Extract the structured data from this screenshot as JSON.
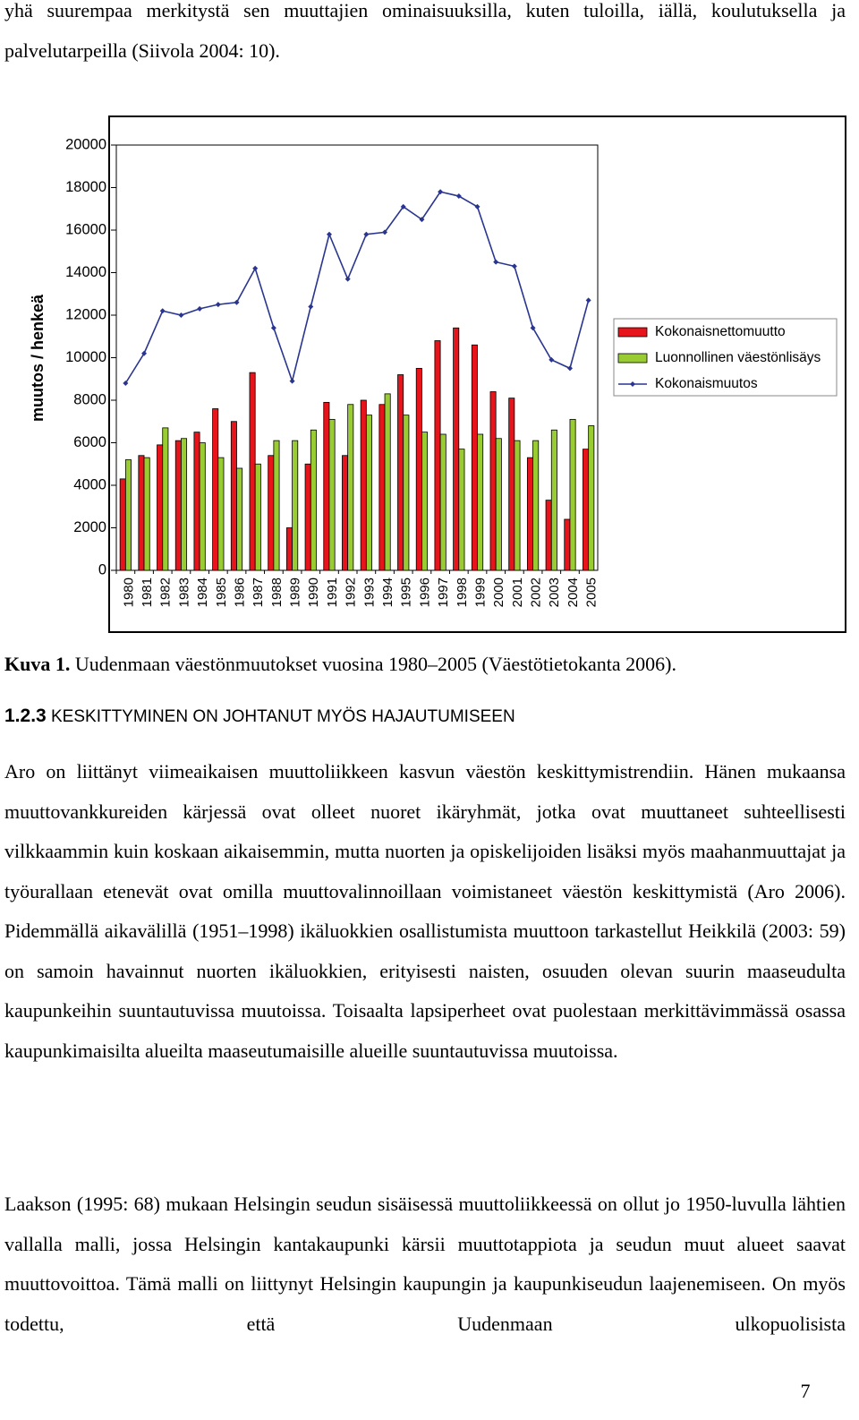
{
  "intro": "yhä suurempaa merkitystä sen muuttajien ominaisuuksilla, kuten tuloilla, iällä, koulutuksella ja palvelutarpeilla (Siivola 2004: 10).",
  "chart_data": {
    "type": "bar",
    "y_label": "muutos / henkeä",
    "categories": [
      "1980",
      "1981",
      "1982",
      "1983",
      "1984",
      "1985",
      "1986",
      "1987",
      "1988",
      "1989",
      "1990",
      "1991",
      "1992",
      "1993",
      "1994",
      "1995",
      "1996",
      "1997",
      "1998",
      "1999",
      "2000",
      "2001",
      "2002",
      "2003",
      "2004",
      "2005"
    ],
    "series": [
      {
        "name": "Kokonaisnettomuutto",
        "type": "bar",
        "color": "#e8141b",
        "values": [
          4300,
          5400,
          5900,
          6100,
          6500,
          7600,
          7000,
          9300,
          5400,
          2000,
          5000,
          7900,
          5400,
          8000,
          7800,
          9200,
          9500,
          10800,
          11400,
          10600,
          8400,
          8100,
          5300,
          3300,
          2400,
          5700
        ]
      },
      {
        "name": "Luonnollinen väestönlisäys",
        "type": "bar",
        "color": "#99cc33",
        "values": [
          5200,
          5300,
          6700,
          6200,
          6000,
          5300,
          4800,
          5000,
          6100,
          6100,
          6600,
          7100,
          7800,
          7300,
          8300,
          7300,
          6500,
          6400,
          5700,
          6400,
          6200,
          6100,
          6100,
          6600,
          7100,
          6800
        ]
      },
      {
        "name": "Kokonaismuutos",
        "type": "line",
        "color": "#2a3590",
        "values": [
          8800,
          10200,
          12200,
          12000,
          12300,
          12500,
          12600,
          14200,
          11400,
          8900,
          12400,
          15800,
          13700,
          15800,
          15900,
          17100,
          16500,
          17800,
          17600,
          17100,
          14500,
          14300,
          11400,
          9900,
          9500,
          12700
        ]
      }
    ],
    "ylim": [
      0,
      20000
    ],
    "yticks": [
      0,
      2000,
      4000,
      6000,
      8000,
      10000,
      12000,
      14000,
      16000,
      18000,
      20000
    ],
    "grid": false,
    "legend": "right"
  },
  "caption": {
    "label": "Kuva 1.",
    "text": "Uudenmaan väestönmuutokset vuosina 1980–2005 (Väestötietokanta 2006)."
  },
  "heading": {
    "number": "1.2.3",
    "title": "KESKITTYMINEN ON JOHTANUT MYÖS HAJAUTUMISEEN"
  },
  "paragraphs": [
    "Aro on liittänyt viimeaikaisen muuttoliikkeen kasvun väestön keskittymistrendiin. Hänen mukaansa muuttovankkureiden kärjessä ovat olleet nuoret ikäryhmät, jotka ovat muuttaneet suhteellisesti vilkkaammin kuin koskaan aikaisemmin, mutta nuorten ja opiskelijoiden lisäksi myös maahanmuuttajat ja työurallaan etenevät ovat omilla muuttovalinnoillaan voimistaneet väestön keskittymistä (Aro 2006). Pidemmällä aikavälillä (1951–1998) ikäluokkien osallistumista muuttoon tarkastellut Heikkilä (2003: 59) on samoin havainnut nuorten ikäluokkien, erityisesti naisten, osuuden olevan suurin maaseudulta kaupunkeihin suuntautuvissa muutoissa. Toisaalta lapsiperheet ovat puolestaan merkittävimmässä osassa kaupunkimaisilta alueilta maaseutumaisille alueille suuntautuvissa muutoissa.",
    "Laakson (1995: 68) mukaan Helsingin seudun sisäisessä muuttoliikkeessä on ollut jo 1950-luvulla lähtien vallalla malli, jossa Helsingin kantakaupunki kärsii muuttotappiota ja seudun muut alueet saavat muuttovoittoa. Tämä malli on liittynyt Helsingin kaupungin ja kaupunkiseudun laajenemiseen. On myös todettu, että Uudenmaan ulkopuolisista"
  ],
  "page_number": "7"
}
